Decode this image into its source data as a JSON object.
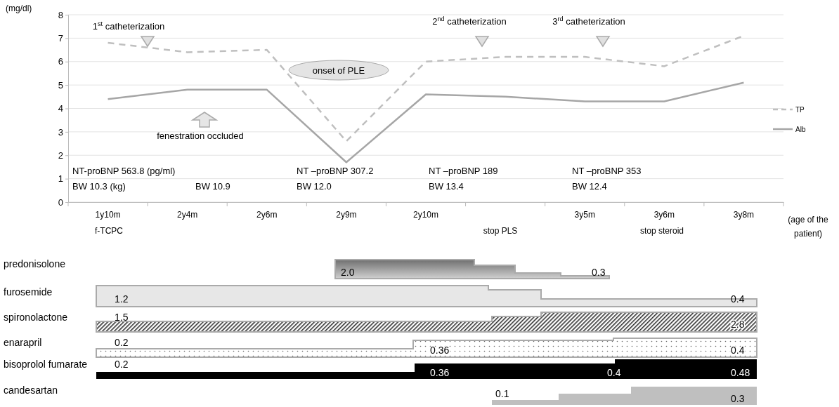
{
  "chart_data": [
    {
      "type": "line",
      "categories": [
        "1y10m",
        "2y4m",
        "2y6m",
        "2y9m",
        "2y10m",
        null,
        "3y5m",
        "3y6m",
        "3y8m"
      ],
      "series": [
        {
          "name": "TP",
          "color": "#bfbfbf",
          "line_style": "dashed",
          "values": [
            6.8,
            6.4,
            6.5,
            2.6,
            6.0,
            6.2,
            6.2,
            5.8,
            7.1
          ]
        },
        {
          "name": "Alb",
          "color": "#a6a6a6",
          "line_style": "solid",
          "values": [
            4.4,
            4.8,
            4.8,
            1.7,
            4.6,
            4.5,
            4.3,
            4.3,
            5.1
          ]
        }
      ],
      "ylim": [
        0,
        8
      ],
      "yticks": [
        0,
        1,
        2,
        3,
        4,
        5,
        6,
        7,
        8
      ],
      "grid": "y",
      "legend": "right",
      "ylabel": "(mg/dl)",
      "xlabel": "(age of the\npatient)",
      "annotations": [
        "1$^{st}$ catheterization",
        "2$^{nd}$ catheterization",
        "3$^{rd}$ catheterization",
        "onset of PLE",
        "fenestration occluded",
        "NT-proBNP 563.8 (pg/ml)",
        "BW 10.3 (kg)",
        "BW 10.9",
        "NT –proBNP 307.2",
        "BW 12.0",
        "NT –proBNP 189",
        "BW 13.4",
        "NT –proBNP 353",
        "BW 12.4",
        "f-TCPC",
        "stop PLS",
        "stop steroid"
      ]
    },
    {
      "type": "other",
      "categories": [
        "predonisolone",
        "furosemide",
        "spironolactone",
        "enarapril",
        "bisoprolol fumarate",
        "candesartan"
      ],
      "annotations": [
        "2.0",
        "0.3",
        "1.2",
        "0.4",
        "1.5",
        "2.8",
        "0.2",
        "0.36",
        "0.4",
        "0.2",
        "0.36",
        "0.4",
        "0.48",
        "0.1",
        "0.3"
      ]
    }
  ]
}
